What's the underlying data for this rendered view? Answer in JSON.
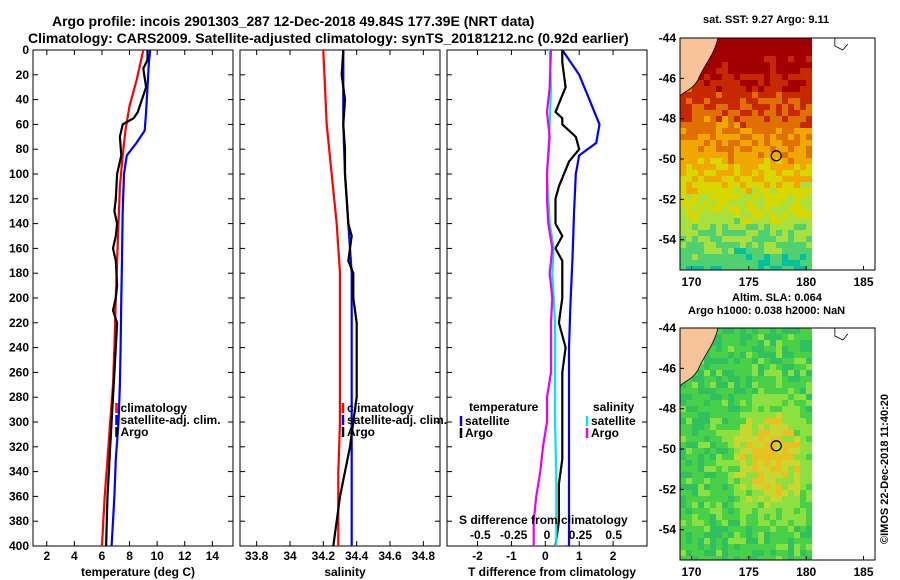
{
  "header": {
    "line1": "Argo profile: incois 2901303_287 12-Dec-2018 49.84S 177.39E (NRT data)",
    "line2": "Climatology: CARS2009. Satellite-adjusted climatology: synTS_20181212.nc (0.92d earlier)"
  },
  "colors": {
    "climatology": "#ff0000",
    "satellite": "#0000ff",
    "argo": "#000000",
    "s_satellite": "#00e5ee",
    "s_argo": "#ee00ee"
  },
  "chart_data": [
    {
      "type": "line",
      "name": "temperature-panel",
      "xlabel": "temperature (deg C)",
      "ylabel": "",
      "xlim": [
        1,
        15.5
      ],
      "ylim": [
        400,
        0
      ],
      "xticks": [
        "2",
        "4",
        "6",
        "8",
        "10",
        "12",
        "14"
      ],
      "yticks": [
        "0",
        "20",
        "40",
        "60",
        "80",
        "100",
        "120",
        "140",
        "160",
        "180",
        "200",
        "220",
        "240",
        "260",
        "280",
        "300",
        "320",
        "340",
        "360",
        "380",
        "400"
      ],
      "legend": [
        "climatology",
        "satellite-adj. clim.",
        "Argo"
      ],
      "series": [
        {
          "name": "climatology",
          "points": [
            [
              9.0,
              0
            ],
            [
              8.8,
              10
            ],
            [
              8.5,
              25
            ],
            [
              8.0,
              45
            ],
            [
              7.7,
              65
            ],
            [
              7.5,
              85
            ],
            [
              7.3,
              110
            ],
            [
              7.2,
              140
            ],
            [
              7.1,
              170
            ],
            [
              7.0,
              200
            ],
            [
              6.9,
              240
            ],
            [
              6.8,
              270
            ],
            [
              6.6,
              300
            ],
            [
              6.4,
              330
            ],
            [
              6.2,
              360
            ],
            [
              6.1,
              380
            ],
            [
              6.0,
              400
            ]
          ]
        },
        {
          "name": "satellite-adj. clim.",
          "points": [
            [
              9.5,
              0
            ],
            [
              9.4,
              10
            ],
            [
              9.3,
              30
            ],
            [
              9.2,
              50
            ],
            [
              9.1,
              65
            ],
            [
              8.5,
              75
            ],
            [
              7.8,
              85
            ],
            [
              7.6,
              100
            ],
            [
              7.5,
              130
            ],
            [
              7.45,
              170
            ],
            [
              7.4,
              200
            ],
            [
              7.35,
              240
            ],
            [
              7.3,
              270
            ],
            [
              7.2,
              300
            ],
            [
              7.0,
              330
            ],
            [
              6.9,
              360
            ],
            [
              6.8,
              380
            ],
            [
              6.7,
              400
            ]
          ]
        },
        {
          "name": "Argo",
          "points": [
            [
              9.3,
              0
            ],
            [
              9.3,
              8
            ],
            [
              9.0,
              15
            ],
            [
              9.2,
              30
            ],
            [
              8.6,
              50
            ],
            [
              8.3,
              55
            ],
            [
              7.5,
              60
            ],
            [
              7.3,
              70
            ],
            [
              7.4,
              85
            ],
            [
              7.1,
              100
            ],
            [
              7.0,
              120
            ],
            [
              6.9,
              130
            ],
            [
              7.1,
              140
            ],
            [
              7.0,
              150
            ],
            [
              6.8,
              160
            ],
            [
              7.0,
              170
            ],
            [
              7.1,
              190
            ],
            [
              7.0,
              200
            ],
            [
              6.8,
              210
            ],
            [
              7.1,
              220
            ],
            [
              7.0,
              240
            ],
            [
              6.9,
              260
            ],
            [
              6.8,
              280
            ],
            [
              6.7,
              300
            ],
            [
              6.6,
              320
            ],
            [
              6.5,
              340
            ],
            [
              6.4,
              360
            ],
            [
              6.35,
              380
            ],
            [
              6.3,
              400
            ]
          ]
        }
      ]
    },
    {
      "type": "line",
      "name": "salinity-panel",
      "xlabel": "salinity",
      "xlim": [
        33.7,
        34.9
      ],
      "ylim": [
        400,
        0
      ],
      "xticks": [
        "33.8",
        "34",
        "34.2",
        "34.4",
        "34.6",
        "34.8"
      ],
      "legend": [
        "climatology",
        "satellite-adj. clim.",
        "Argo"
      ],
      "series": [
        {
          "name": "climatology",
          "points": [
            [
              34.2,
              0
            ],
            [
              34.21,
              30
            ],
            [
              34.22,
              60
            ],
            [
              34.25,
              100
            ],
            [
              34.28,
              140
            ],
            [
              34.3,
              180
            ],
            [
              34.3,
              220
            ],
            [
              34.3,
              260
            ],
            [
              34.3,
              300
            ],
            [
              34.29,
              340
            ],
            [
              34.29,
              400
            ]
          ]
        },
        {
          "name": "satellite-adj. clim.",
          "points": [
            [
              34.32,
              0
            ],
            [
              34.32,
              30
            ],
            [
              34.32,
              60
            ],
            [
              34.33,
              100
            ],
            [
              34.35,
              140
            ],
            [
              34.36,
              160
            ],
            [
              34.37,
              180
            ],
            [
              34.37,
              220
            ],
            [
              34.37,
              260
            ],
            [
              34.37,
              300
            ],
            [
              34.37,
              340
            ],
            [
              34.37,
              400
            ]
          ]
        },
        {
          "name": "Argo",
          "points": [
            [
              34.32,
              0
            ],
            [
              34.31,
              20
            ],
            [
              34.33,
              40
            ],
            [
              34.32,
              60
            ],
            [
              34.33,
              80
            ],
            [
              34.33,
              100
            ],
            [
              34.34,
              120
            ],
            [
              34.35,
              140
            ],
            [
              34.37,
              150
            ],
            [
              34.36,
              160
            ],
            [
              34.35,
              170
            ],
            [
              34.38,
              180
            ],
            [
              34.38,
              200
            ],
            [
              34.4,
              220
            ],
            [
              34.4,
              240
            ],
            [
              34.4,
              260
            ],
            [
              34.4,
              280
            ],
            [
              34.38,
              300
            ],
            [
              34.36,
              320
            ],
            [
              34.33,
              340
            ],
            [
              34.3,
              360
            ],
            [
              34.28,
              380
            ],
            [
              34.26,
              400
            ]
          ]
        }
      ]
    },
    {
      "type": "line",
      "name": "difference-panel",
      "xlabel": "T difference from climatology",
      "xlabel_top": "S difference from climatology",
      "xlim": [
        -2.9,
        3.0
      ],
      "ylim": [
        400,
        0
      ],
      "xticks": [
        "-2",
        "-1",
        "0",
        "1",
        "2"
      ],
      "xticks_top": [
        "-0.5",
        "-0.25",
        "0",
        "0.25",
        "0.5"
      ],
      "s_xlim": [
        -0.75,
        0.75
      ],
      "legend_left_title": "temperature",
      "legend_left": [
        "satellite",
        "Argo"
      ],
      "legend_right_title": "salinity",
      "legend_right": [
        "satellite",
        "Argo"
      ],
      "t_series": [
        {
          "name": "satellite",
          "points": [
            [
              0.5,
              0
            ],
            [
              1.0,
              20
            ],
            [
              1.3,
              40
            ],
            [
              1.6,
              60
            ],
            [
              1.5,
              75
            ],
            [
              1.0,
              85
            ],
            [
              0.9,
              100
            ],
            [
              0.85,
              130
            ],
            [
              0.8,
              170
            ],
            [
              0.75,
              200
            ],
            [
              0.7,
              240
            ],
            [
              0.7,
              270
            ],
            [
              0.7,
              300
            ],
            [
              0.7,
              340
            ],
            [
              0.7,
              400
            ]
          ]
        },
        {
          "name": "Argo",
          "points": [
            [
              0.5,
              0
            ],
            [
              0.5,
              10
            ],
            [
              0.6,
              30
            ],
            [
              0.3,
              50
            ],
            [
              0.5,
              55
            ],
            [
              0.5,
              60
            ],
            [
              0.9,
              70
            ],
            [
              1.0,
              80
            ],
            [
              0.7,
              90
            ],
            [
              0.4,
              110
            ],
            [
              0.3,
              120
            ],
            [
              0.3,
              140
            ],
            [
              0.5,
              150
            ],
            [
              0.3,
              160
            ],
            [
              0.5,
              170
            ],
            [
              0.5,
              200
            ],
            [
              0.4,
              220
            ],
            [
              0.6,
              240
            ],
            [
              0.5,
              260
            ],
            [
              0.5,
              280
            ],
            [
              0.5,
              300
            ],
            [
              0.5,
              330
            ],
            [
              0.4,
              350
            ],
            [
              0.4,
              380
            ],
            [
              0.3,
              400
            ]
          ]
        }
      ],
      "s_series": [
        {
          "name": "satellite",
          "points": [
            [
              0.02,
              0
            ],
            [
              0.03,
              30
            ],
            [
              0.02,
              60
            ],
            [
              0.0,
              100
            ],
            [
              0.02,
              140
            ],
            [
              0.05,
              160
            ],
            [
              0.04,
              180
            ],
            [
              0.06,
              220
            ],
            [
              0.06,
              260
            ],
            [
              0.06,
              300
            ],
            [
              0.07,
              340
            ],
            [
              0.07,
              400
            ]
          ]
        },
        {
          "name": "Argo",
          "points": [
            [
              0.03,
              0
            ],
            [
              0.02,
              30
            ],
            [
              0.0,
              50
            ],
            [
              0.02,
              70
            ],
            [
              0.0,
              100
            ],
            [
              0.0,
              120
            ],
            [
              0.01,
              140
            ],
            [
              0.04,
              160
            ],
            [
              0.02,
              180
            ],
            [
              0.04,
              200
            ],
            [
              0.03,
              220
            ],
            [
              0.03,
              260
            ],
            [
              0.0,
              280
            ],
            [
              0.0,
              300
            ],
            [
              -0.03,
              320
            ],
            [
              -0.05,
              340
            ],
            [
              -0.08,
              360
            ],
            [
              -0.1,
              380
            ],
            [
              -0.1,
              400
            ]
          ]
        }
      ]
    },
    {
      "type": "heatmap",
      "name": "sst-map",
      "title": "sat. SST: 9.27  Argo: 9.11",
      "xlim": [
        169,
        186
      ],
      "ylim": [
        -55.5,
        -44
      ],
      "xticks": [
        "170",
        "175",
        "180",
        "185"
      ],
      "yticks": [
        "-44",
        "-46",
        "-48",
        "-50",
        "-52",
        "-54"
      ],
      "marker": [
        177.39,
        -49.84
      ]
    },
    {
      "type": "heatmap",
      "name": "sla-map",
      "title": "Altim. SLA: 0.064",
      "subtitle": "Argo h1000: 0.038  h2000: NaN",
      "xlim": [
        169,
        186
      ],
      "ylim": [
        -55.5,
        -44
      ],
      "xticks": [
        "170",
        "175",
        "180",
        "185"
      ],
      "yticks": [
        "-44",
        "-46",
        "-48",
        "-50",
        "-52",
        "-54"
      ],
      "marker": [
        177.39,
        -49.84
      ]
    }
  ],
  "credit": "©IMOS 22-Dec-2018 11:40:20"
}
